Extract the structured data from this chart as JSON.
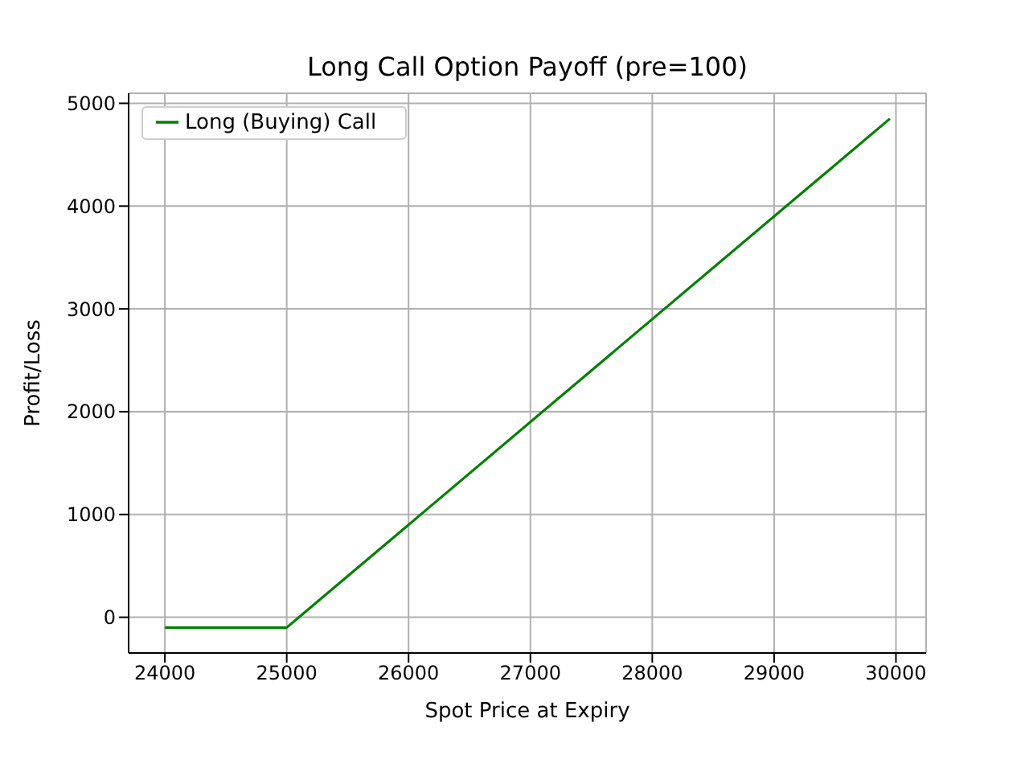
{
  "chart_data": {
    "type": "line",
    "title": "Long Call Option Payoff (pre=100)",
    "xlabel": "Spot Price at Expiry",
    "ylabel": "Profit/Loss",
    "x": [
      24000,
      25000,
      29950
    ],
    "series": [
      {
        "name": "Long (Buying) Call",
        "color": "#008000",
        "values": [
          -100,
          -100,
          4850
        ]
      }
    ],
    "xlim": [
      23702.5,
      30247.5
    ],
    "xticks": [
      24000,
      25000,
      26000,
      27000,
      28000,
      29000,
      30000
    ],
    "ylim": [
      -347.5,
      5097.5
    ],
    "yticks": [
      0,
      1000,
      2000,
      3000,
      4000,
      5000
    ],
    "grid": true,
    "legend": "top left",
    "marker": "none",
    "line_style": "solid"
  }
}
